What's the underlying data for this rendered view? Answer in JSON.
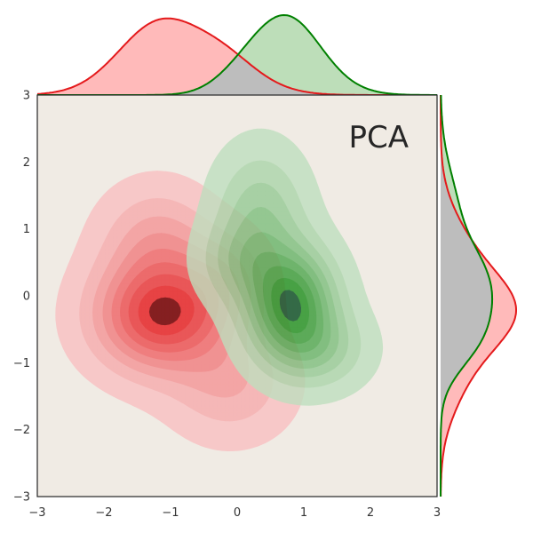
{
  "chart_data": {
    "type": "joint-kde",
    "title": "PCA",
    "xlabel": "",
    "ylabel": "",
    "xlim": [
      -3,
      3
    ],
    "ylim": [
      -3,
      3
    ],
    "x_ticks": [
      -3,
      -2,
      -1,
      0,
      1,
      2,
      3
    ],
    "y_ticks": [
      -3,
      -2,
      -1,
      0,
      1,
      2,
      3
    ],
    "x_tick_labels": [
      "−3",
      "−2",
      "−1",
      "0",
      "1",
      "2",
      "3"
    ],
    "y_tick_labels": [
      "−3",
      "−2",
      "−1",
      "0",
      "1",
      "2",
      "3"
    ],
    "grid": false,
    "legend": "none",
    "colors": {
      "series_red": "#e41a1c",
      "series_green": "#008000",
      "overlap": "#bdbdbd",
      "plot_background": "#f0ebe4"
    },
    "series": [
      {
        "color": "#e41a1c",
        "components": [
          {
            "mx": -1.15,
            "my": -0.3,
            "sx": 0.65,
            "sy": 0.55,
            "w": 1.0
          },
          {
            "mx": -1.2,
            "my": 0.8,
            "sx": 0.55,
            "sy": 0.55,
            "w": 0.35
          },
          {
            "mx": -0.1,
            "my": -1.3,
            "sx": 0.6,
            "sy": 0.55,
            "w": 0.3
          },
          {
            "mx": -0.2,
            "my": 0.2,
            "sx": 0.45,
            "sy": 0.5,
            "w": 0.3
          }
        ]
      },
      {
        "color": "#008000",
        "components": [
          {
            "mx": 0.8,
            "my": -0.1,
            "sx": 0.45,
            "sy": 0.55,
            "w": 1.0
          },
          {
            "mx": 0.35,
            "my": 1.2,
            "sx": 0.45,
            "sy": 0.65,
            "w": 0.4
          },
          {
            "mx": 1.2,
            "my": -0.8,
            "sx": 0.5,
            "sy": 0.4,
            "w": 0.35
          },
          {
            "mx": 0.0,
            "my": 0.5,
            "sx": 0.4,
            "sy": 0.4,
            "w": 0.25
          }
        ]
      }
    ]
  }
}
